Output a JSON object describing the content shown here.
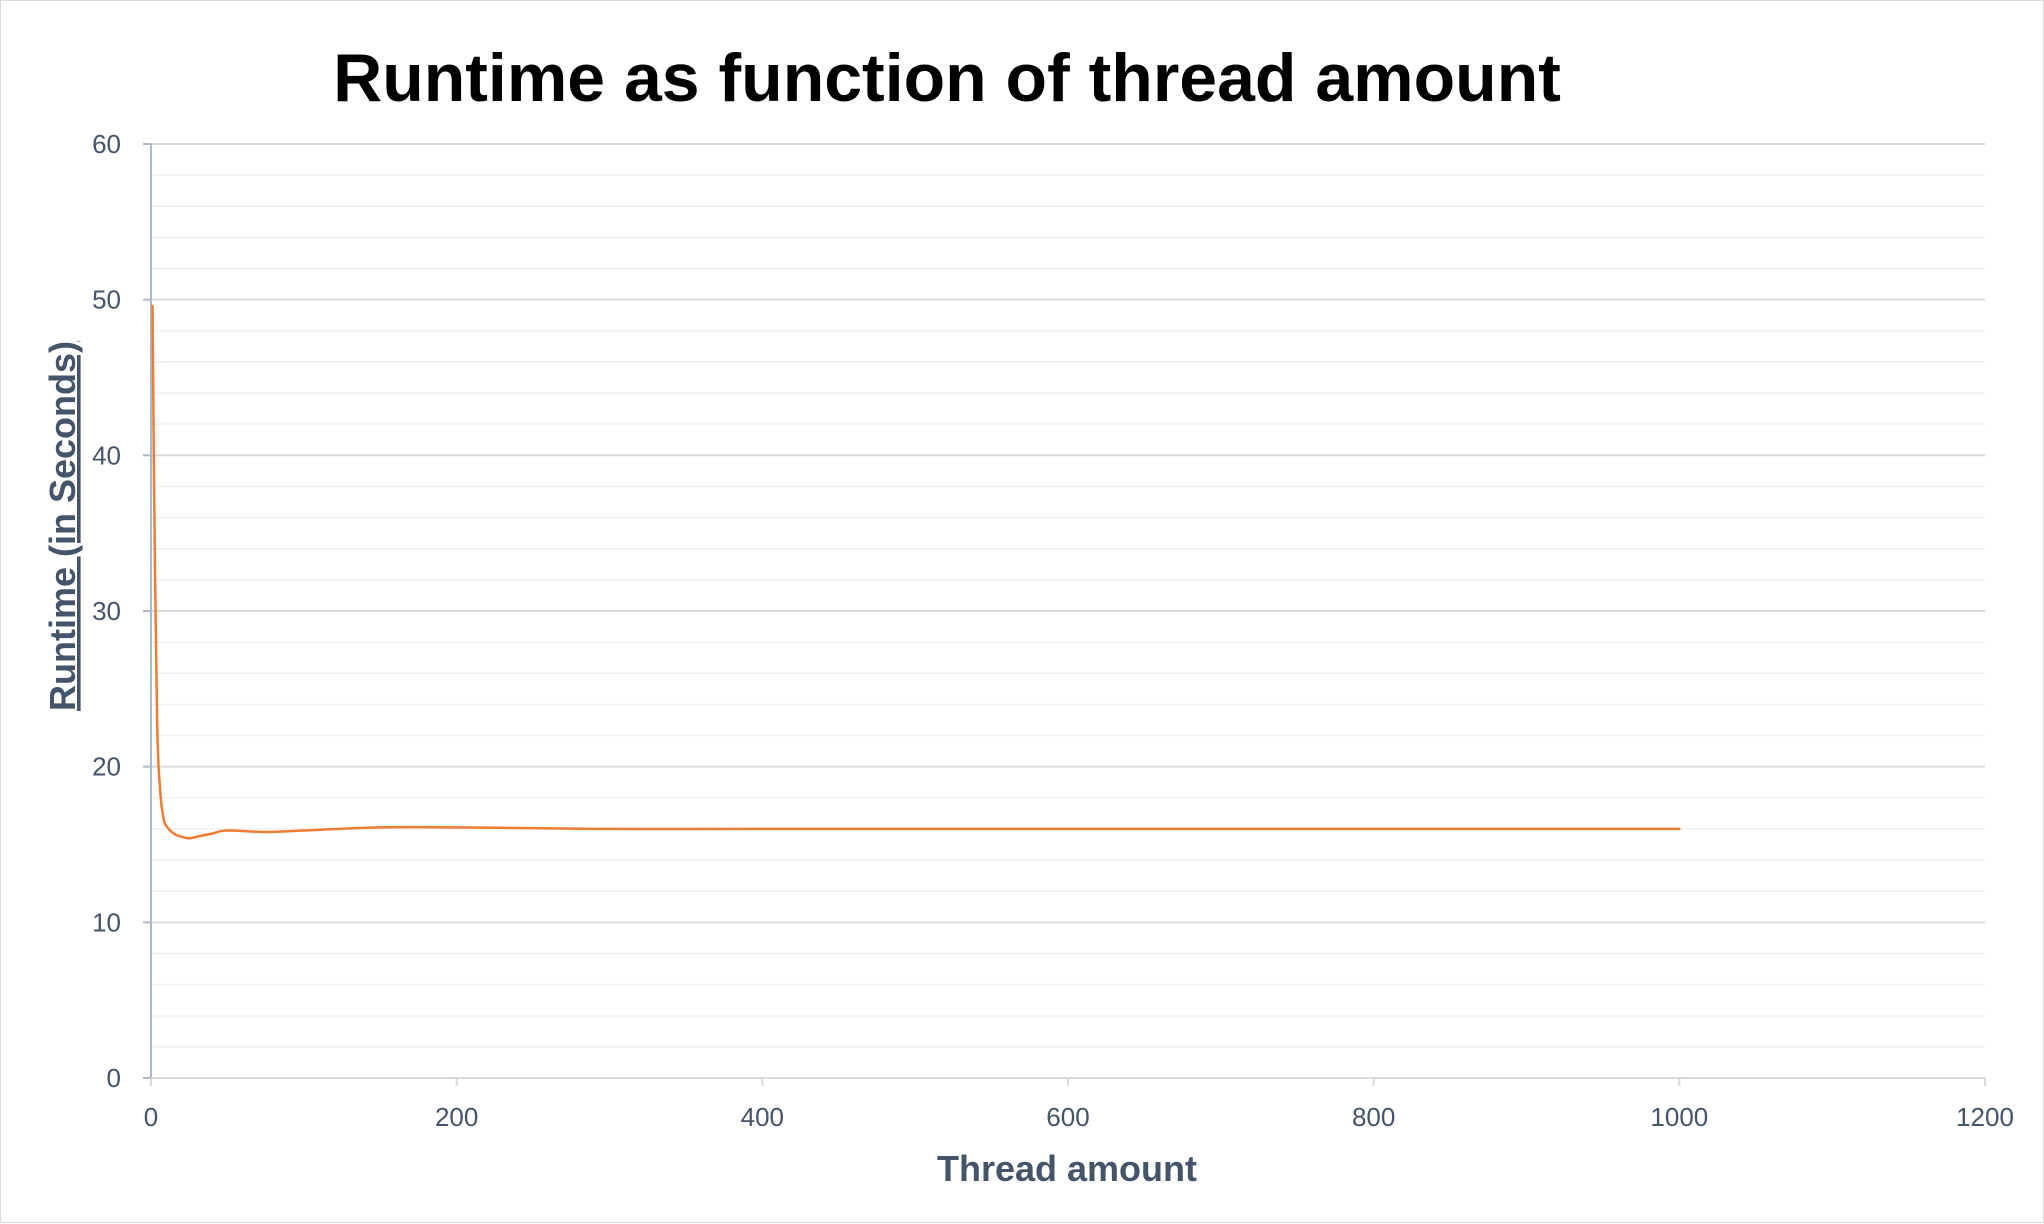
{
  "chart_data": {
    "type": "line",
    "title": "Runtime as function of thread amount",
    "xlabel": "Thread amount",
    "ylabel": "Runtime  (in Seconds)",
    "xlim": [
      0,
      1200
    ],
    "ylim": [
      0,
      60
    ],
    "x_ticks": [
      "0",
      "200",
      "400",
      "600",
      "800",
      "1000",
      "1200"
    ],
    "y_ticks": [
      "0",
      "10",
      "20",
      "30",
      "40",
      "50",
      "60"
    ],
    "grid": true,
    "legend": "none",
    "series": [
      {
        "color": "#ed7d31",
        "x": [
          1,
          2,
          4,
          6,
          8,
          10,
          15,
          20,
          25,
          30,
          40,
          50,
          75,
          100,
          150,
          200,
          300,
          400,
          500,
          600,
          700,
          800,
          900,
          1000
        ],
        "y": [
          49.6,
          38.0,
          23.0,
          18.5,
          16.8,
          16.2,
          15.7,
          15.5,
          15.4,
          15.5,
          15.7,
          15.9,
          15.8,
          15.9,
          16.1,
          16.1,
          16.0,
          16.0,
          16.0,
          16.0,
          16.0,
          16.0,
          16.0,
          16.0
        ]
      }
    ]
  }
}
